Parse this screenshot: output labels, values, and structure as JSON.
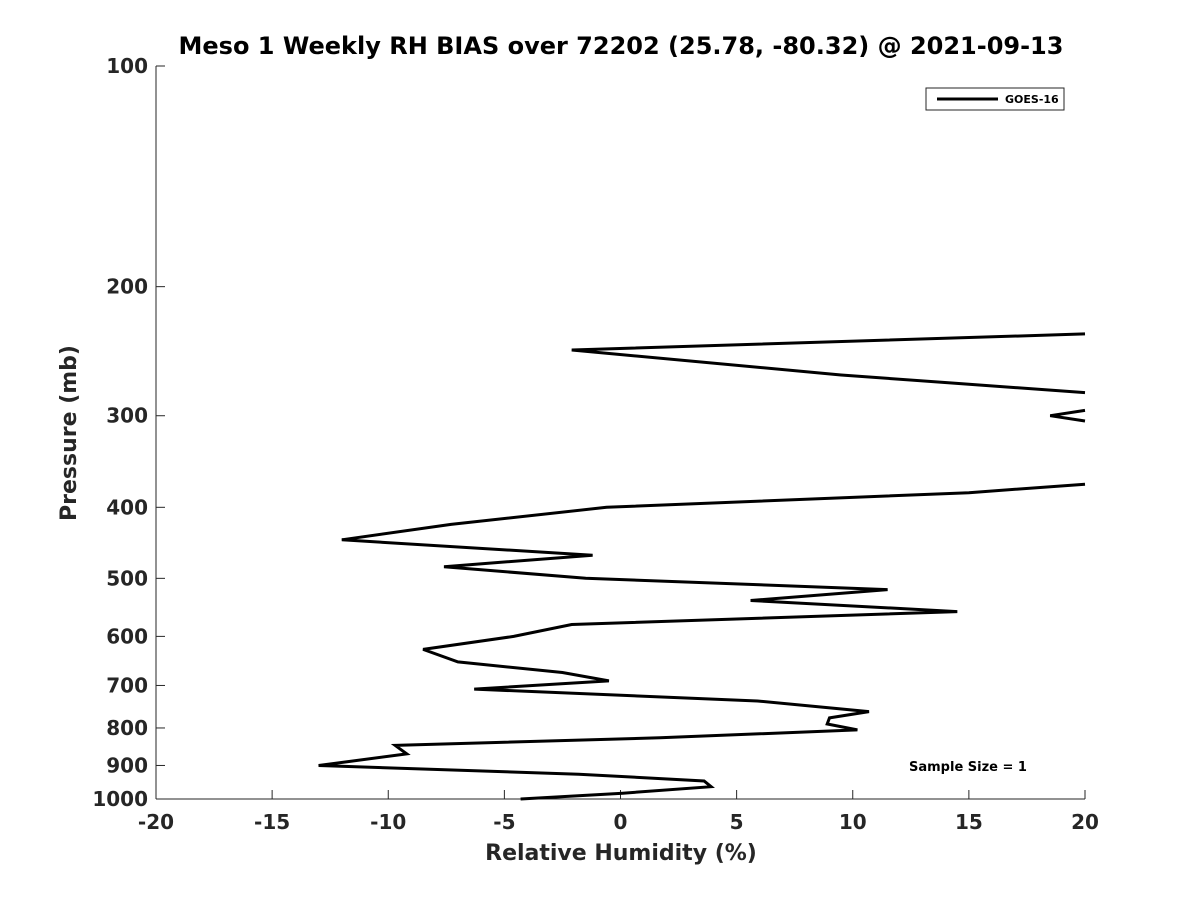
{
  "chart_data": {
    "type": "line",
    "title": "Meso 1 Weekly RH BIAS over 72202 (25.78, -80.32) @ 2021-09-13",
    "xlabel": "Relative Humidity (%)",
    "ylabel": "Pressure (mb)",
    "xlim": [
      -20,
      20
    ],
    "ylim": [
      100,
      1000
    ],
    "y_scale": "log",
    "y_reversed": true,
    "x_ticks": [
      -20,
      -15,
      -10,
      -5,
      0,
      5,
      10,
      15,
      20
    ],
    "x_tick_labels": [
      "-20",
      "-15",
      "-10",
      "-5",
      "0",
      "5",
      "10",
      "15",
      "20"
    ],
    "y_ticks": [
      100,
      200,
      300,
      400,
      500,
      600,
      700,
      800,
      900,
      1000
    ],
    "y_tick_labels": [
      "100",
      "200",
      "300",
      "400",
      "500",
      "600",
      "700",
      "800",
      "900",
      "1000"
    ],
    "grid": false,
    "legend_position": "top-right",
    "annotation": "Sample Size = 1",
    "series": [
      {
        "name": "GOES-16",
        "color": "#000000",
        "segments": [
          [
            {
              "x": 20,
              "y": 232
            },
            {
              "x": -2.1,
              "y": 244
            },
            {
              "x": 9.5,
              "y": 264
            },
            {
              "x": 20,
              "y": 279
            }
          ],
          [
            {
              "x": 20,
              "y": 295
            },
            {
              "x": 18.5,
              "y": 300
            },
            {
              "x": 20,
              "y": 305
            }
          ],
          [
            {
              "x": 20,
              "y": 372
            },
            {
              "x": 15,
              "y": 382
            },
            {
              "x": -0.6,
              "y": 400
            },
            {
              "x": -7.3,
              "y": 422
            },
            {
              "x": -12,
              "y": 443
            },
            {
              "x": -1.2,
              "y": 465
            },
            {
              "x": -7.6,
              "y": 482
            },
            {
              "x": -1.5,
              "y": 500
            },
            {
              "x": 11.5,
              "y": 518
            },
            {
              "x": 5.6,
              "y": 536
            },
            {
              "x": 14.5,
              "y": 555
            },
            {
              "x": -2.1,
              "y": 578
            },
            {
              "x": -4.6,
              "y": 600
            },
            {
              "x": -8.5,
              "y": 625
            },
            {
              "x": -7.0,
              "y": 650
            },
            {
              "x": -2.5,
              "y": 672
            },
            {
              "x": -0.5,
              "y": 690
            },
            {
              "x": -6.3,
              "y": 708
            },
            {
              "x": 5.9,
              "y": 735
            },
            {
              "x": 10.7,
              "y": 760
            },
            {
              "x": 9.0,
              "y": 775
            },
            {
              "x": 8.9,
              "y": 790
            },
            {
              "x": 10.2,
              "y": 805
            },
            {
              "x": 1.7,
              "y": 825
            },
            {
              "x": -9.7,
              "y": 845
            },
            {
              "x": -9.2,
              "y": 868
            },
            {
              "x": -13.0,
              "y": 900
            },
            {
              "x": -1.8,
              "y": 925
            },
            {
              "x": 3.6,
              "y": 945
            },
            {
              "x": 3.9,
              "y": 962
            },
            {
              "x": 0.1,
              "y": 982
            },
            {
              "x": -4.3,
              "y": 1000
            }
          ]
        ]
      }
    ]
  }
}
